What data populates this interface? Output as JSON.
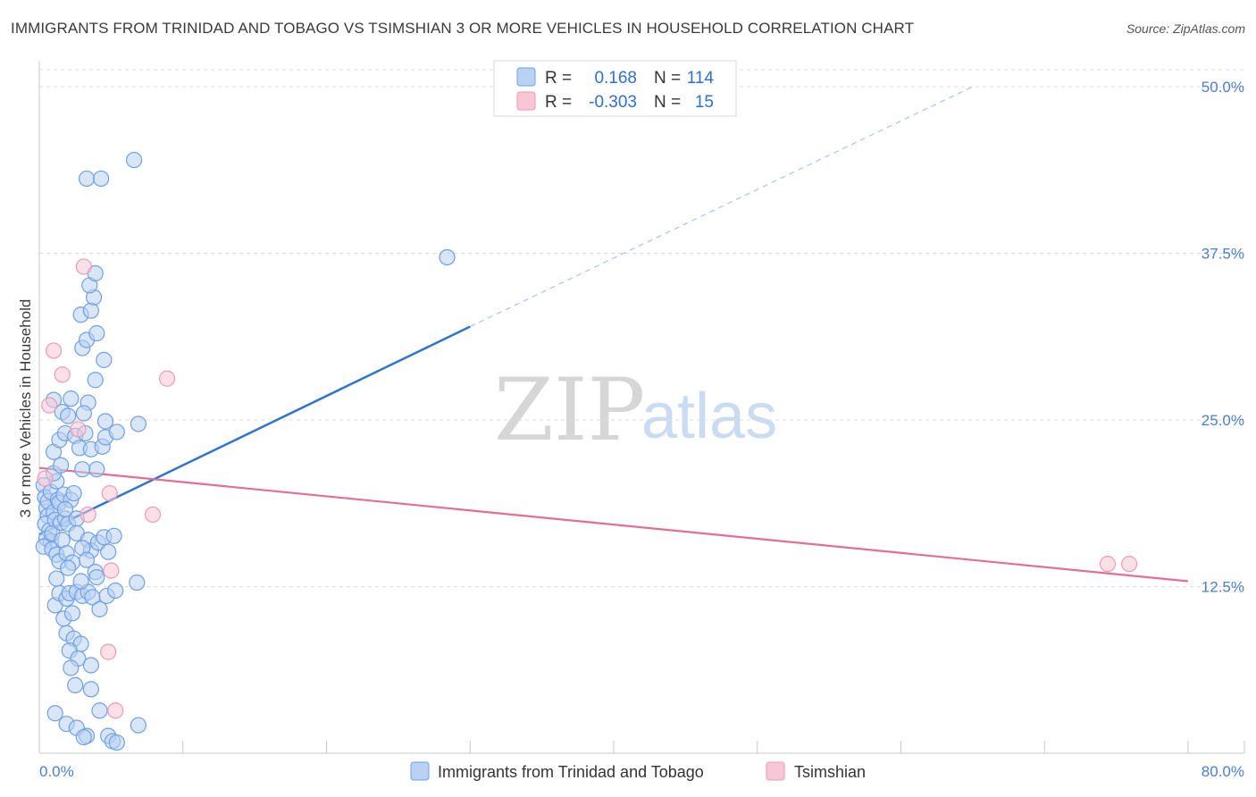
{
  "title": "IMMIGRANTS FROM TRINIDAD AND TOBAGO VS TSIMSHIAN 3 OR MORE VEHICLES IN HOUSEHOLD CORRELATION CHART",
  "source": "Source: ZipAtlas.com",
  "watermark": {
    "zip": "ZIP",
    "atlas": "atlas"
  },
  "legend": {
    "rows": [
      {
        "r_label": "R =",
        "r_value": "0.168",
        "n_label": "N =",
        "n_value": "114",
        "color": "#a9c8f0"
      },
      {
        "r_label": "R =",
        "r_value": "-0.303",
        "n_label": "N =",
        "n_value": "15",
        "color": "#f4b6c8"
      }
    ]
  },
  "chart_data": {
    "type": "scatter",
    "title": "IMMIGRANTS FROM TRINIDAD AND TOBAGO VS TSIMSHIAN 3 OR MORE VEHICLES IN HOUSEHOLD CORRELATION CHART",
    "xlabel": "",
    "ylabel": "3 or more Vehicles in Household",
    "xlim": [
      0,
      80
    ],
    "ylim": [
      0,
      50
    ],
    "x_tick_labels": [
      "0.0%",
      "80.0%"
    ],
    "y_ticks": [
      12.5,
      25.0,
      37.5,
      50.0
    ],
    "y_tick_labels": [
      "12.5%",
      "25.0%",
      "37.5%",
      "50.0%"
    ],
    "grid": true,
    "legend_position": "top-center",
    "series": [
      {
        "name": "Immigrants from Trinidad and Tobago",
        "color": "#6fa0e6",
        "fill": "#b9d2f3",
        "points": [
          [
            0.3,
            20.1
          ],
          [
            0.4,
            19.2
          ],
          [
            0.5,
            18.4
          ],
          [
            0.6,
            17.8
          ],
          [
            0.4,
            17.2
          ],
          [
            0.7,
            16.7
          ],
          [
            0.5,
            16.1
          ],
          [
            0.8,
            15.9
          ],
          [
            0.3,
            15.5
          ],
          [
            0.9,
            15.3
          ],
          [
            0.6,
            18.9
          ],
          [
            1.0,
            18.1
          ],
          [
            1.1,
            17.5
          ],
          [
            0.8,
            19.6
          ],
          [
            1.2,
            20.4
          ],
          [
            1.3,
            19.0
          ],
          [
            0.9,
            16.5
          ],
          [
            1.4,
            18.8
          ],
          [
            1.0,
            21.0
          ],
          [
            1.5,
            17.3
          ],
          [
            1.6,
            16.0
          ],
          [
            1.7,
            19.4
          ],
          [
            1.8,
            17.6
          ],
          [
            1.2,
            14.9
          ],
          [
            1.4,
            14.4
          ],
          [
            1.9,
            15.0
          ],
          [
            2.0,
            17.2
          ],
          [
            2.2,
            19.0
          ],
          [
            2.4,
            19.5
          ],
          [
            2.6,
            17.6
          ],
          [
            1.0,
            22.6
          ],
          [
            1.4,
            23.5
          ],
          [
            1.6,
            25.6
          ],
          [
            1.0,
            26.5
          ],
          [
            1.8,
            24.0
          ],
          [
            2.0,
            25.3
          ],
          [
            2.2,
            26.6
          ],
          [
            2.5,
            23.8
          ],
          [
            2.8,
            22.9
          ],
          [
            3.0,
            21.3
          ],
          [
            3.2,
            24.0
          ],
          [
            3.4,
            26.3
          ],
          [
            3.1,
            25.5
          ],
          [
            3.6,
            22.8
          ],
          [
            4.0,
            21.3
          ],
          [
            4.4,
            23.0
          ],
          [
            4.6,
            24.9
          ],
          [
            3.9,
            28.0
          ],
          [
            4.5,
            29.5
          ],
          [
            3.0,
            30.4
          ],
          [
            3.3,
            31.0
          ],
          [
            2.9,
            32.9
          ],
          [
            4.0,
            31.5
          ],
          [
            3.6,
            33.2
          ],
          [
            3.8,
            34.2
          ],
          [
            3.5,
            35.1
          ],
          [
            3.9,
            36.0
          ],
          [
            4.6,
            23.7
          ],
          [
            5.4,
            24.1
          ],
          [
            6.9,
            24.7
          ],
          [
            2.6,
            16.5
          ],
          [
            3.4,
            16.0
          ],
          [
            3.6,
            15.2
          ],
          [
            3.0,
            15.4
          ],
          [
            3.3,
            14.5
          ],
          [
            3.9,
            13.6
          ],
          [
            4.1,
            15.8
          ],
          [
            4.5,
            16.2
          ],
          [
            4.8,
            15.1
          ],
          [
            5.2,
            16.3
          ],
          [
            1.1,
            11.1
          ],
          [
            1.4,
            12.0
          ],
          [
            1.9,
            11.6
          ],
          [
            2.1,
            12.0
          ],
          [
            2.6,
            12.1
          ],
          [
            3.0,
            11.8
          ],
          [
            3.4,
            12.1
          ],
          [
            3.7,
            11.7
          ],
          [
            4.2,
            10.8
          ],
          [
            4.7,
            11.8
          ],
          [
            5.3,
            12.2
          ],
          [
            6.8,
            12.8
          ],
          [
            1.7,
            10.1
          ],
          [
            2.3,
            10.5
          ],
          [
            1.9,
            9.0
          ],
          [
            2.4,
            8.6
          ],
          [
            2.9,
            8.2
          ],
          [
            2.1,
            7.7
          ],
          [
            2.7,
            7.1
          ],
          [
            2.2,
            6.4
          ],
          [
            3.6,
            6.6
          ],
          [
            2.5,
            5.1
          ],
          [
            3.6,
            4.8
          ],
          [
            4.2,
            3.2
          ],
          [
            1.1,
            3.0
          ],
          [
            1.9,
            2.2
          ],
          [
            2.6,
            1.9
          ],
          [
            3.3,
            1.3
          ],
          [
            4.8,
            1.3
          ],
          [
            5.1,
            0.9
          ],
          [
            6.9,
            2.1
          ],
          [
            3.1,
            1.2
          ],
          [
            5.4,
            0.8
          ],
          [
            6.6,
            44.5
          ],
          [
            3.3,
            43.1
          ],
          [
            4.3,
            43.1
          ],
          [
            28.4,
            37.2
          ],
          [
            1.5,
            21.6
          ],
          [
            1.8,
            18.3
          ],
          [
            2.3,
            14.3
          ],
          [
            1.2,
            13.1
          ],
          [
            2.0,
            13.9
          ],
          [
            2.9,
            12.9
          ],
          [
            4.0,
            13.2
          ]
        ]
      },
      {
        "name": "Tsimshian",
        "color": "#ee9ab4",
        "fill": "#f7c7d6",
        "points": [
          [
            0.4,
            20.6
          ],
          [
            0.7,
            26.1
          ],
          [
            1.0,
            30.2
          ],
          [
            1.6,
            28.4
          ],
          [
            2.7,
            24.3
          ],
          [
            3.1,
            36.5
          ],
          [
            3.4,
            17.9
          ],
          [
            4.9,
            19.5
          ],
          [
            7.9,
            17.9
          ],
          [
            8.9,
            28.1
          ],
          [
            5.0,
            13.7
          ],
          [
            4.8,
            7.6
          ],
          [
            5.3,
            3.2
          ],
          [
            74.4,
            14.2
          ],
          [
            75.9,
            14.2
          ]
        ]
      }
    ],
    "trend_lines": [
      {
        "series": "Immigrants from Trinidad and Tobago",
        "solid_from": [
          0,
          16.4
        ],
        "solid_to": [
          30,
          32.0
        ],
        "dashed_to": [
          65,
          50.0
        ]
      },
      {
        "series": "Tsimshian",
        "from": [
          0,
          21.4
        ],
        "to": [
          80,
          12.9
        ]
      }
    ]
  },
  "axis": {
    "ylabel": "3 or more Vehicles in Household",
    "y_tick_labels": [
      "12.5%",
      "25.0%",
      "37.5%",
      "50.0%"
    ],
    "x_left": "0.0%",
    "x_right": "80.0%"
  },
  "bottom_legend": [
    {
      "label": "Immigrants from Trinidad and Tobago",
      "fill": "#b9d2f3",
      "stroke": "#6fa0e6"
    },
    {
      "label": "Tsimshian",
      "fill": "#f7c7d6",
      "stroke": "#ee9ab4"
    }
  ]
}
